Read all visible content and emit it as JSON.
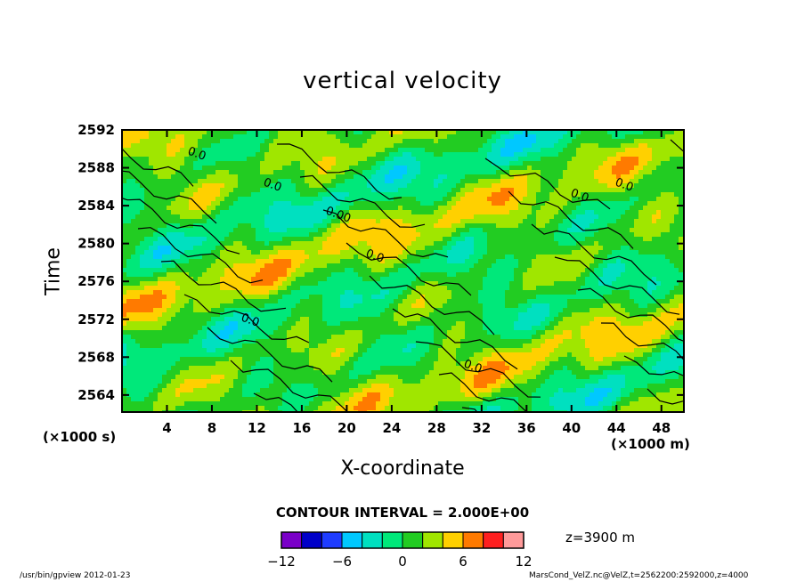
{
  "chart_data": {
    "type": "heatmap",
    "title": "vertical velocity",
    "xlabel": "X-coordinate",
    "ylabel": "Time",
    "x_unit": "(×1000 m)",
    "y_unit": "(×1000 s)",
    "xlim": [
      0,
      50
    ],
    "ylim": [
      2562.2,
      2592
    ],
    "x_ticks": [
      "4",
      "8",
      "12",
      "16",
      "20",
      "24",
      "28",
      "32",
      "36",
      "40",
      "44",
      "48"
    ],
    "y_ticks": [
      "2564",
      "2568",
      "2572",
      "2576",
      "2580",
      "2584",
      "2588",
      "2592"
    ],
    "contour_interval": "CONTOUR INTERVAL = 2.000E+00",
    "level_info": "z=3900 m",
    "colorbar": {
      "min": -12,
      "max": 12,
      "step": 2,
      "tick_labels": [
        "−12",
        "−6",
        "0",
        "6",
        "12"
      ],
      "colors": [
        "#7a00c8",
        "#0000c8",
        "#1e3cff",
        "#00c8ff",
        "#00e0c0",
        "#00e87a",
        "#22cc22",
        "#a0e600",
        "#ffd000",
        "#ff7a00",
        "#ff2020",
        "#ff9a9a"
      ]
    },
    "contour_labels": [
      "0.0",
      "0.0",
      "0.00",
      "0.0",
      "0.0",
      "0.0",
      "0.0",
      "0.0"
    ]
  },
  "footer": {
    "left": "/usr/bin/gpview  2012-01-23",
    "right": "MarsCond_VelZ.nc@VelZ,t=2562200:2592000,z=4000"
  }
}
